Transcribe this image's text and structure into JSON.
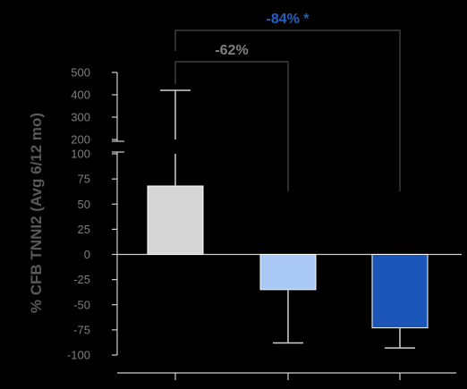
{
  "chart_data": {
    "type": "bar",
    "categories": [
      "",
      "",
      ""
    ],
    "values": [
      68,
      -35,
      -73
    ],
    "errors": {
      "upper": [
        420,
        null,
        null
      ],
      "lower": [
        null,
        -88,
        -93
      ]
    },
    "ylabel": "% CFB TNNI2 (Avg 6/12 mo)",
    "y_axis": {
      "broken": true,
      "lower_segment": {
        "range": [
          -100,
          100
        ],
        "ticks": [
          "100",
          "75",
          "50",
          "25",
          "0",
          "-25",
          "-50",
          "-75",
          "-100"
        ]
      },
      "upper_segment": {
        "range": [
          200,
          500
        ],
        "ticks": [
          "500",
          "400",
          "300",
          "200"
        ]
      }
    },
    "bar_colors": [
      "#d6d6d6",
      "#a9c8f5",
      "#1a56b8"
    ],
    "annotations": [
      {
        "text": "-62%",
        "color": "#7f7f7f",
        "from": 0,
        "to": 1
      },
      {
        "text": "-84% *",
        "color": "#2260c4",
        "from": 0,
        "to": 2
      }
    ],
    "grid": false,
    "legend": "none"
  }
}
